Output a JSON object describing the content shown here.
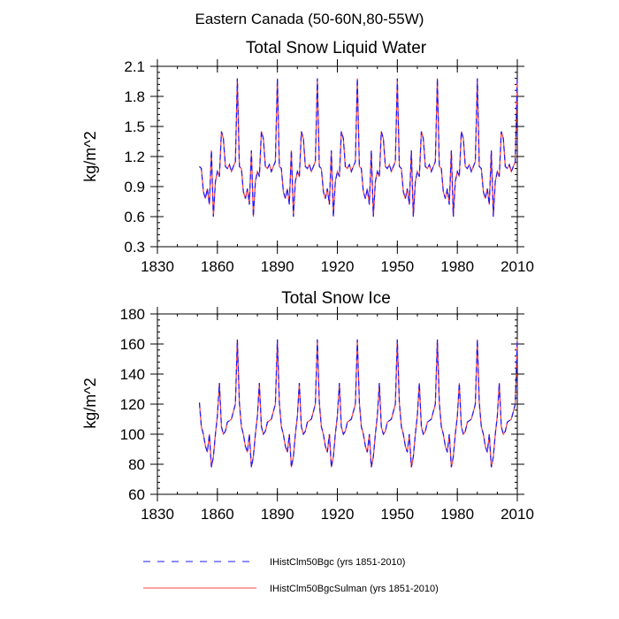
{
  "page": {
    "suptitle": "Eastern Canada (50-60N,80-55W)"
  },
  "colors": {
    "series1": "#1a1aff",
    "series2": "#ff4040"
  },
  "chart_data": [
    {
      "type": "line",
      "title": "Total Snow Liquid Water",
      "ylabel": "kg/m^2",
      "xlabel": "",
      "xlim": [
        1830,
        2010
      ],
      "ylim": [
        0.3,
        2.1
      ],
      "xticks": [
        "1830",
        "1860",
        "1890",
        "1920",
        "1950",
        "1980",
        "2010"
      ],
      "yticks": [
        "0.3",
        "0.6",
        "0.9",
        "1.2",
        "1.5",
        "1.8",
        "2.1"
      ],
      "x_start": 1851,
      "x_end": 2010,
      "cycle": [
        1.1,
        1.08,
        0.85,
        0.78,
        0.88,
        0.72,
        1.26,
        0.6,
        0.95,
        1.05,
        1.0,
        1.45,
        1.38,
        1.1,
        1.08,
        1.12,
        1.05,
        1.1,
        1.15,
        1.98
      ],
      "series": [
        {
          "name": "IHistClm50Bgc (yrs 1851-2010)",
          "style": "dashed"
        },
        {
          "name": "IHistClm50BgcSulman (yrs 1851-2010)",
          "style": "solid"
        }
      ]
    },
    {
      "type": "line",
      "title": "Total Snow Ice",
      "ylabel": "kg/m^2",
      "xlabel": "",
      "xlim": [
        1830,
        2010
      ],
      "ylim": [
        60,
        180
      ],
      "xticks": [
        "1830",
        "1860",
        "1890",
        "1920",
        "1950",
        "1980",
        "2010"
      ],
      "yticks": [
        "60",
        "80",
        "100",
        "120",
        "140",
        "160",
        "180"
      ],
      "x_start": 1851,
      "x_end": 2010,
      "cycle": [
        121,
        105,
        100,
        92,
        88,
        100,
        78,
        85,
        100,
        112,
        134,
        105,
        100,
        102,
        108,
        109,
        110,
        115,
        120,
        163
      ],
      "series": [
        {
          "name": "IHistClm50Bgc (yrs 1851-2010)",
          "style": "dashed"
        },
        {
          "name": "IHistClm50BgcSulman (yrs 1851-2010)",
          "style": "solid"
        }
      ]
    }
  ],
  "legend": {
    "placement": "bottom-center",
    "entries": [
      {
        "label": "IHistClm50Bgc (yrs 1851-2010)",
        "style": "dashed",
        "color": "#1a1aff"
      },
      {
        "label": "IHistClm50BgcSulman (yrs 1851-2010)",
        "style": "solid",
        "color": "#ff4040"
      }
    ]
  }
}
